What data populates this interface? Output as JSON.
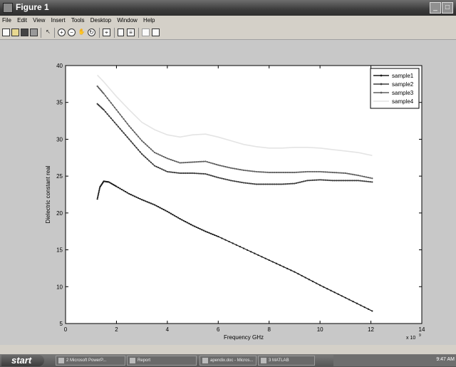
{
  "window": {
    "title": "Figure 1"
  },
  "menu": [
    "File",
    "Edit",
    "View",
    "Insert",
    "Tools",
    "Desktop",
    "Window",
    "Help"
  ],
  "toolbar": {
    "icons": [
      "new-file-icon",
      "open-file-icon",
      "save-icon",
      "print-icon",
      "edit-plot-arrow-icon",
      "zoom-in-icon",
      "zoom-out-icon",
      "pan-hand-icon",
      "rotate-3d-icon",
      "data-cursor-icon",
      "colorbar-icon",
      "legend-icon",
      "hide-plot-tools-icon",
      "show-plot-tools-icon"
    ]
  },
  "chart_data": {
    "type": "line",
    "xlabel": "Frequency GHz",
    "ylabel": "Dielectric constant real",
    "x_exponent_label": "x 10",
    "x_exponent_power": "9",
    "xlim": [
      0,
      14
    ],
    "ylim": [
      5,
      40
    ],
    "xticks": [
      0,
      2,
      4,
      6,
      8,
      10,
      12,
      14
    ],
    "yticks": [
      5,
      10,
      15,
      20,
      25,
      30,
      35,
      40
    ],
    "legend_position": "top-right",
    "series": [
      {
        "name": "sample1",
        "marker": "dot",
        "x": [
          1.25,
          1.35,
          1.5,
          1.7,
          2.0,
          2.5,
          3.0,
          3.5,
          4.0,
          4.5,
          5.0,
          5.5,
          6.0,
          7.0,
          8.0,
          9.0,
          10.0,
          11.0,
          12.05
        ],
        "y": [
          21.9,
          23.5,
          24.3,
          24.2,
          23.6,
          22.6,
          21.8,
          21.1,
          20.2,
          19.2,
          18.3,
          17.5,
          16.8,
          15.2,
          13.6,
          12.0,
          10.2,
          8.5,
          6.7
        ]
      },
      {
        "name": "sample2",
        "marker": "dot",
        "x": [
          1.25,
          1.5,
          2.0,
          2.5,
          3.0,
          3.5,
          4.0,
          4.5,
          5.0,
          5.5,
          6.0,
          6.5,
          7.0,
          7.5,
          8.0,
          8.5,
          9.0,
          9.5,
          10.0,
          10.5,
          11.0,
          11.5,
          12.05
        ],
        "y": [
          34.8,
          34.0,
          32.0,
          30.0,
          28.0,
          26.4,
          25.6,
          25.4,
          25.4,
          25.3,
          24.8,
          24.4,
          24.1,
          23.9,
          23.9,
          23.9,
          24.0,
          24.4,
          24.5,
          24.4,
          24.4,
          24.4,
          24.2
        ]
      },
      {
        "name": "sample3",
        "marker": "dot",
        "x": [
          1.25,
          1.5,
          2.0,
          2.5,
          3.0,
          3.5,
          4.0,
          4.5,
          5.0,
          5.5,
          6.0,
          6.5,
          7.0,
          7.5,
          8.0,
          8.5,
          9.0,
          9.5,
          10.0,
          10.5,
          11.0,
          11.5,
          12.05
        ],
        "y": [
          37.2,
          36.2,
          34.0,
          31.8,
          29.8,
          28.2,
          27.4,
          26.8,
          26.9,
          27.0,
          26.5,
          26.1,
          25.8,
          25.6,
          25.5,
          25.5,
          25.5,
          25.6,
          25.6,
          25.5,
          25.4,
          25.1,
          24.7
        ]
      },
      {
        "name": "sample4",
        "marker": "none",
        "x": [
          1.25,
          1.5,
          2.0,
          2.5,
          3.0,
          3.5,
          4.0,
          4.5,
          5.0,
          5.5,
          6.0,
          6.5,
          7.0,
          7.5,
          8.0,
          8.5,
          9.0,
          9.5,
          10.0,
          10.5,
          11.0,
          11.5,
          12.05
        ],
        "y": [
          38.7,
          37.8,
          35.8,
          34.0,
          32.3,
          31.3,
          30.6,
          30.3,
          30.6,
          30.7,
          30.3,
          29.8,
          29.3,
          29.0,
          28.8,
          28.8,
          28.9,
          28.9,
          28.8,
          28.6,
          28.4,
          28.2,
          27.8
        ]
      }
    ]
  },
  "taskbar": {
    "start_label": "start",
    "tasks": [
      "2 Microsoft PowerP...",
      "Report",
      "apendix.doc - Micros...",
      "3 MATLAB"
    ],
    "clock": "9:47 AM"
  },
  "colors": {
    "sample1": "#1a1a1a",
    "sample2": "#3a3a3a",
    "sample3": "#5e5e5e",
    "sample4": "#e4e4e4",
    "figure_bg": "#c8c8c8",
    "axes_bg": "#ffffff"
  }
}
